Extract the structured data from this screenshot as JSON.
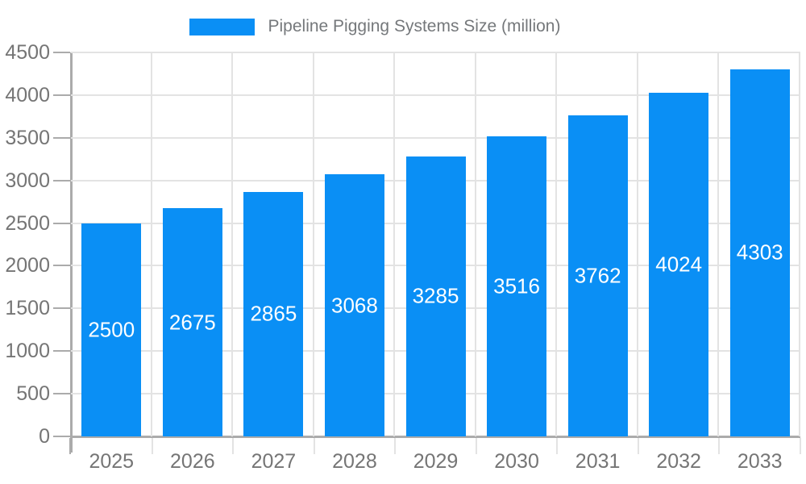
{
  "chart_data": {
    "type": "bar",
    "title": "Pipeline Pigging Systems Size (million)",
    "categories": [
      "2025",
      "2026",
      "2027",
      "2028",
      "2029",
      "2030",
      "2031",
      "2032",
      "2033"
    ],
    "values": [
      2500,
      2675,
      2865,
      3068,
      3285,
      3516,
      3762,
      4024,
      4303
    ],
    "xlabel": "",
    "ylabel": "",
    "ylim": [
      0,
      4500
    ],
    "ytick_step": 500,
    "grid": true,
    "legend_position": "top-center",
    "value_labels": "centered-inside-bars",
    "colors": {
      "bar": "#0a8ff5",
      "value_label_text": "#ffffff",
      "axis_tick_text": "#757575",
      "legend_text": "#75787b",
      "gridline": "#e3e3e3",
      "axis_line": "#ababab",
      "background": "#ffffff"
    }
  }
}
